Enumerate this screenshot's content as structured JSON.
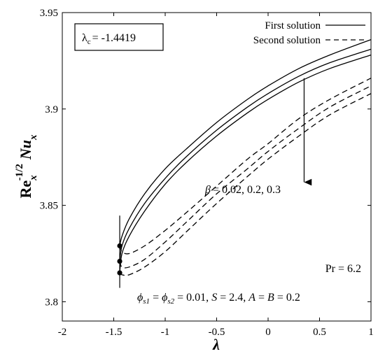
{
  "chart_data": {
    "type": "line",
    "xlabel": "λ",
    "ylabel": {
      "base": "Re",
      "sub": "x",
      "sup": "-1/2",
      "nu": "Nu",
      "nu_sub": "x"
    },
    "xlim": [
      -2,
      1
    ],
    "ylim": [
      3.79,
      3.95
    ],
    "x_ticks": [
      -2,
      -1.5,
      -1,
      -0.5,
      0,
      0.5,
      1
    ],
    "x_tick_labels": [
      "-2",
      "-1.5",
      "-1",
      "-0.5",
      "0",
      "0.5",
      "1"
    ],
    "y_ticks": [
      3.8,
      3.85,
      3.9,
      3.95
    ],
    "y_tick_labels": [
      "3.8",
      "3.85",
      "3.9",
      "3.95"
    ],
    "grid": false,
    "legend": {
      "placement": "top-right",
      "entries": [
        {
          "label": "First solution",
          "style": "solid"
        },
        {
          "label": "Second solution",
          "style": "dashed"
        }
      ]
    },
    "critical_box": {
      "symbol": "λ",
      "sub": "c",
      "value": "= -1.4419"
    },
    "critical_x": -1.4419,
    "critical_points_y": [
      3.829,
      3.821,
      3.815
    ],
    "arrow": {
      "from": [
        0.35,
        3.916
      ],
      "to": [
        0.35,
        3.862
      ]
    },
    "annotations": {
      "beta": {
        "symbol": "β",
        "text": "= 0.02, 0.2, 0.3"
      },
      "pr": "Pr = 6.2",
      "params": {
        "phi": "ϕ",
        "s1": "s1",
        "s2": "s2",
        "text1": " = ",
        "text2": " = 0.01, ",
        "s": "S",
        "text3": " = 2.4, ",
        "a": "A",
        "text4": " = ",
        "b": "B",
        "text5": " = 0.2"
      }
    },
    "series": [
      {
        "style": "solid",
        "x": [
          -1.4419,
          -1.42,
          -1.35,
          -1.2,
          -1.0,
          -0.8,
          -0.5,
          -0.2,
          0.0,
          0.3,
          0.6,
          1.0
        ],
        "y": [
          3.829,
          3.834,
          3.843,
          3.856,
          3.869,
          3.879,
          3.893,
          3.905,
          3.912,
          3.921,
          3.928,
          3.936
        ]
      },
      {
        "style": "solid",
        "x": [
          -1.4419,
          -1.42,
          -1.35,
          -1.2,
          -1.0,
          -0.8,
          -0.5,
          -0.2,
          0.0,
          0.3,
          0.6,
          1.0
        ],
        "y": [
          3.821,
          3.829,
          3.838,
          3.851,
          3.864,
          3.875,
          3.889,
          3.901,
          3.908,
          3.917,
          3.924,
          3.931
        ]
      },
      {
        "style": "solid",
        "x": [
          -1.4419,
          -1.42,
          -1.35,
          -1.2,
          -1.0,
          -0.8,
          -0.5,
          -0.2,
          0.0,
          0.3,
          0.6,
          1.0
        ],
        "y": [
          3.815,
          3.825,
          3.834,
          3.847,
          3.861,
          3.872,
          3.886,
          3.898,
          3.905,
          3.914,
          3.921,
          3.928
        ]
      },
      {
        "style": "dashed",
        "x": [
          -1.4419,
          -1.42,
          -1.35,
          -1.2,
          -1.0,
          -0.8,
          -0.5,
          -0.2,
          0.0,
          0.3,
          0.6,
          1.0
        ],
        "y": [
          3.829,
          3.826,
          3.825,
          3.829,
          3.837,
          3.846,
          3.86,
          3.874,
          3.882,
          3.895,
          3.905,
          3.916
        ]
      },
      {
        "style": "dashed",
        "x": [
          -1.4419,
          -1.42,
          -1.35,
          -1.2,
          -1.0,
          -0.8,
          -0.5,
          -0.2,
          0.0,
          0.3,
          0.6,
          1.0
        ],
        "y": [
          3.821,
          3.818,
          3.818,
          3.822,
          3.831,
          3.841,
          3.856,
          3.869,
          3.878,
          3.89,
          3.901,
          3.912
        ]
      },
      {
        "style": "dashed",
        "x": [
          -1.4419,
          -1.42,
          -1.35,
          -1.2,
          -1.0,
          -0.8,
          -0.5,
          -0.2,
          0.0,
          0.3,
          0.6,
          1.0
        ],
        "y": [
          3.815,
          3.814,
          3.814,
          3.818,
          3.826,
          3.836,
          3.851,
          3.865,
          3.874,
          3.886,
          3.897,
          3.908
        ]
      }
    ]
  }
}
